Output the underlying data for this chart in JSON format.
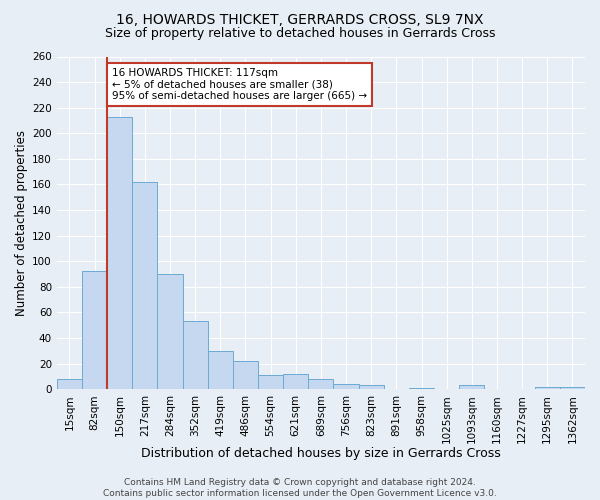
{
  "title": "16, HOWARDS THICKET, GERRARDS CROSS, SL9 7NX",
  "subtitle": "Size of property relative to detached houses in Gerrards Cross",
  "xlabel": "Distribution of detached houses by size in Gerrards Cross",
  "ylabel": "Number of detached properties",
  "categories": [
    "15sqm",
    "82sqm",
    "150sqm",
    "217sqm",
    "284sqm",
    "352sqm",
    "419sqm",
    "486sqm",
    "554sqm",
    "621sqm",
    "689sqm",
    "756sqm",
    "823sqm",
    "891sqm",
    "958sqm",
    "1025sqm",
    "1093sqm",
    "1160sqm",
    "1227sqm",
    "1295sqm",
    "1362sqm"
  ],
  "values": [
    8,
    92,
    213,
    162,
    90,
    53,
    30,
    22,
    11,
    12,
    8,
    4,
    3,
    0,
    1,
    0,
    3,
    0,
    0,
    2,
    2
  ],
  "bar_color": "#c5d8ef",
  "bar_edge_color": "#6aaad4",
  "vline_color": "#c0392b",
  "vline_x": 1.5,
  "annotation_text": "16 HOWARDS THICKET: 117sqm\n← 5% of detached houses are smaller (38)\n95% of semi-detached houses are larger (665) →",
  "annotation_box_facecolor": "white",
  "annotation_box_edgecolor": "#c0392b",
  "ylim": [
    0,
    260
  ],
  "yticks": [
    0,
    20,
    40,
    60,
    80,
    100,
    120,
    140,
    160,
    180,
    200,
    220,
    240,
    260
  ],
  "background_color": "#e8eef5",
  "plot_background_color": "#e8eef5",
  "grid_color": "white",
  "footer": "Contains HM Land Registry data © Crown copyright and database right 2024.\nContains public sector information licensed under the Open Government Licence v3.0.",
  "title_fontsize": 10,
  "subtitle_fontsize": 9,
  "xlabel_fontsize": 9,
  "ylabel_fontsize": 8.5,
  "tick_fontsize": 7.5,
  "annotation_fontsize": 7.5,
  "footer_fontsize": 6.5
}
